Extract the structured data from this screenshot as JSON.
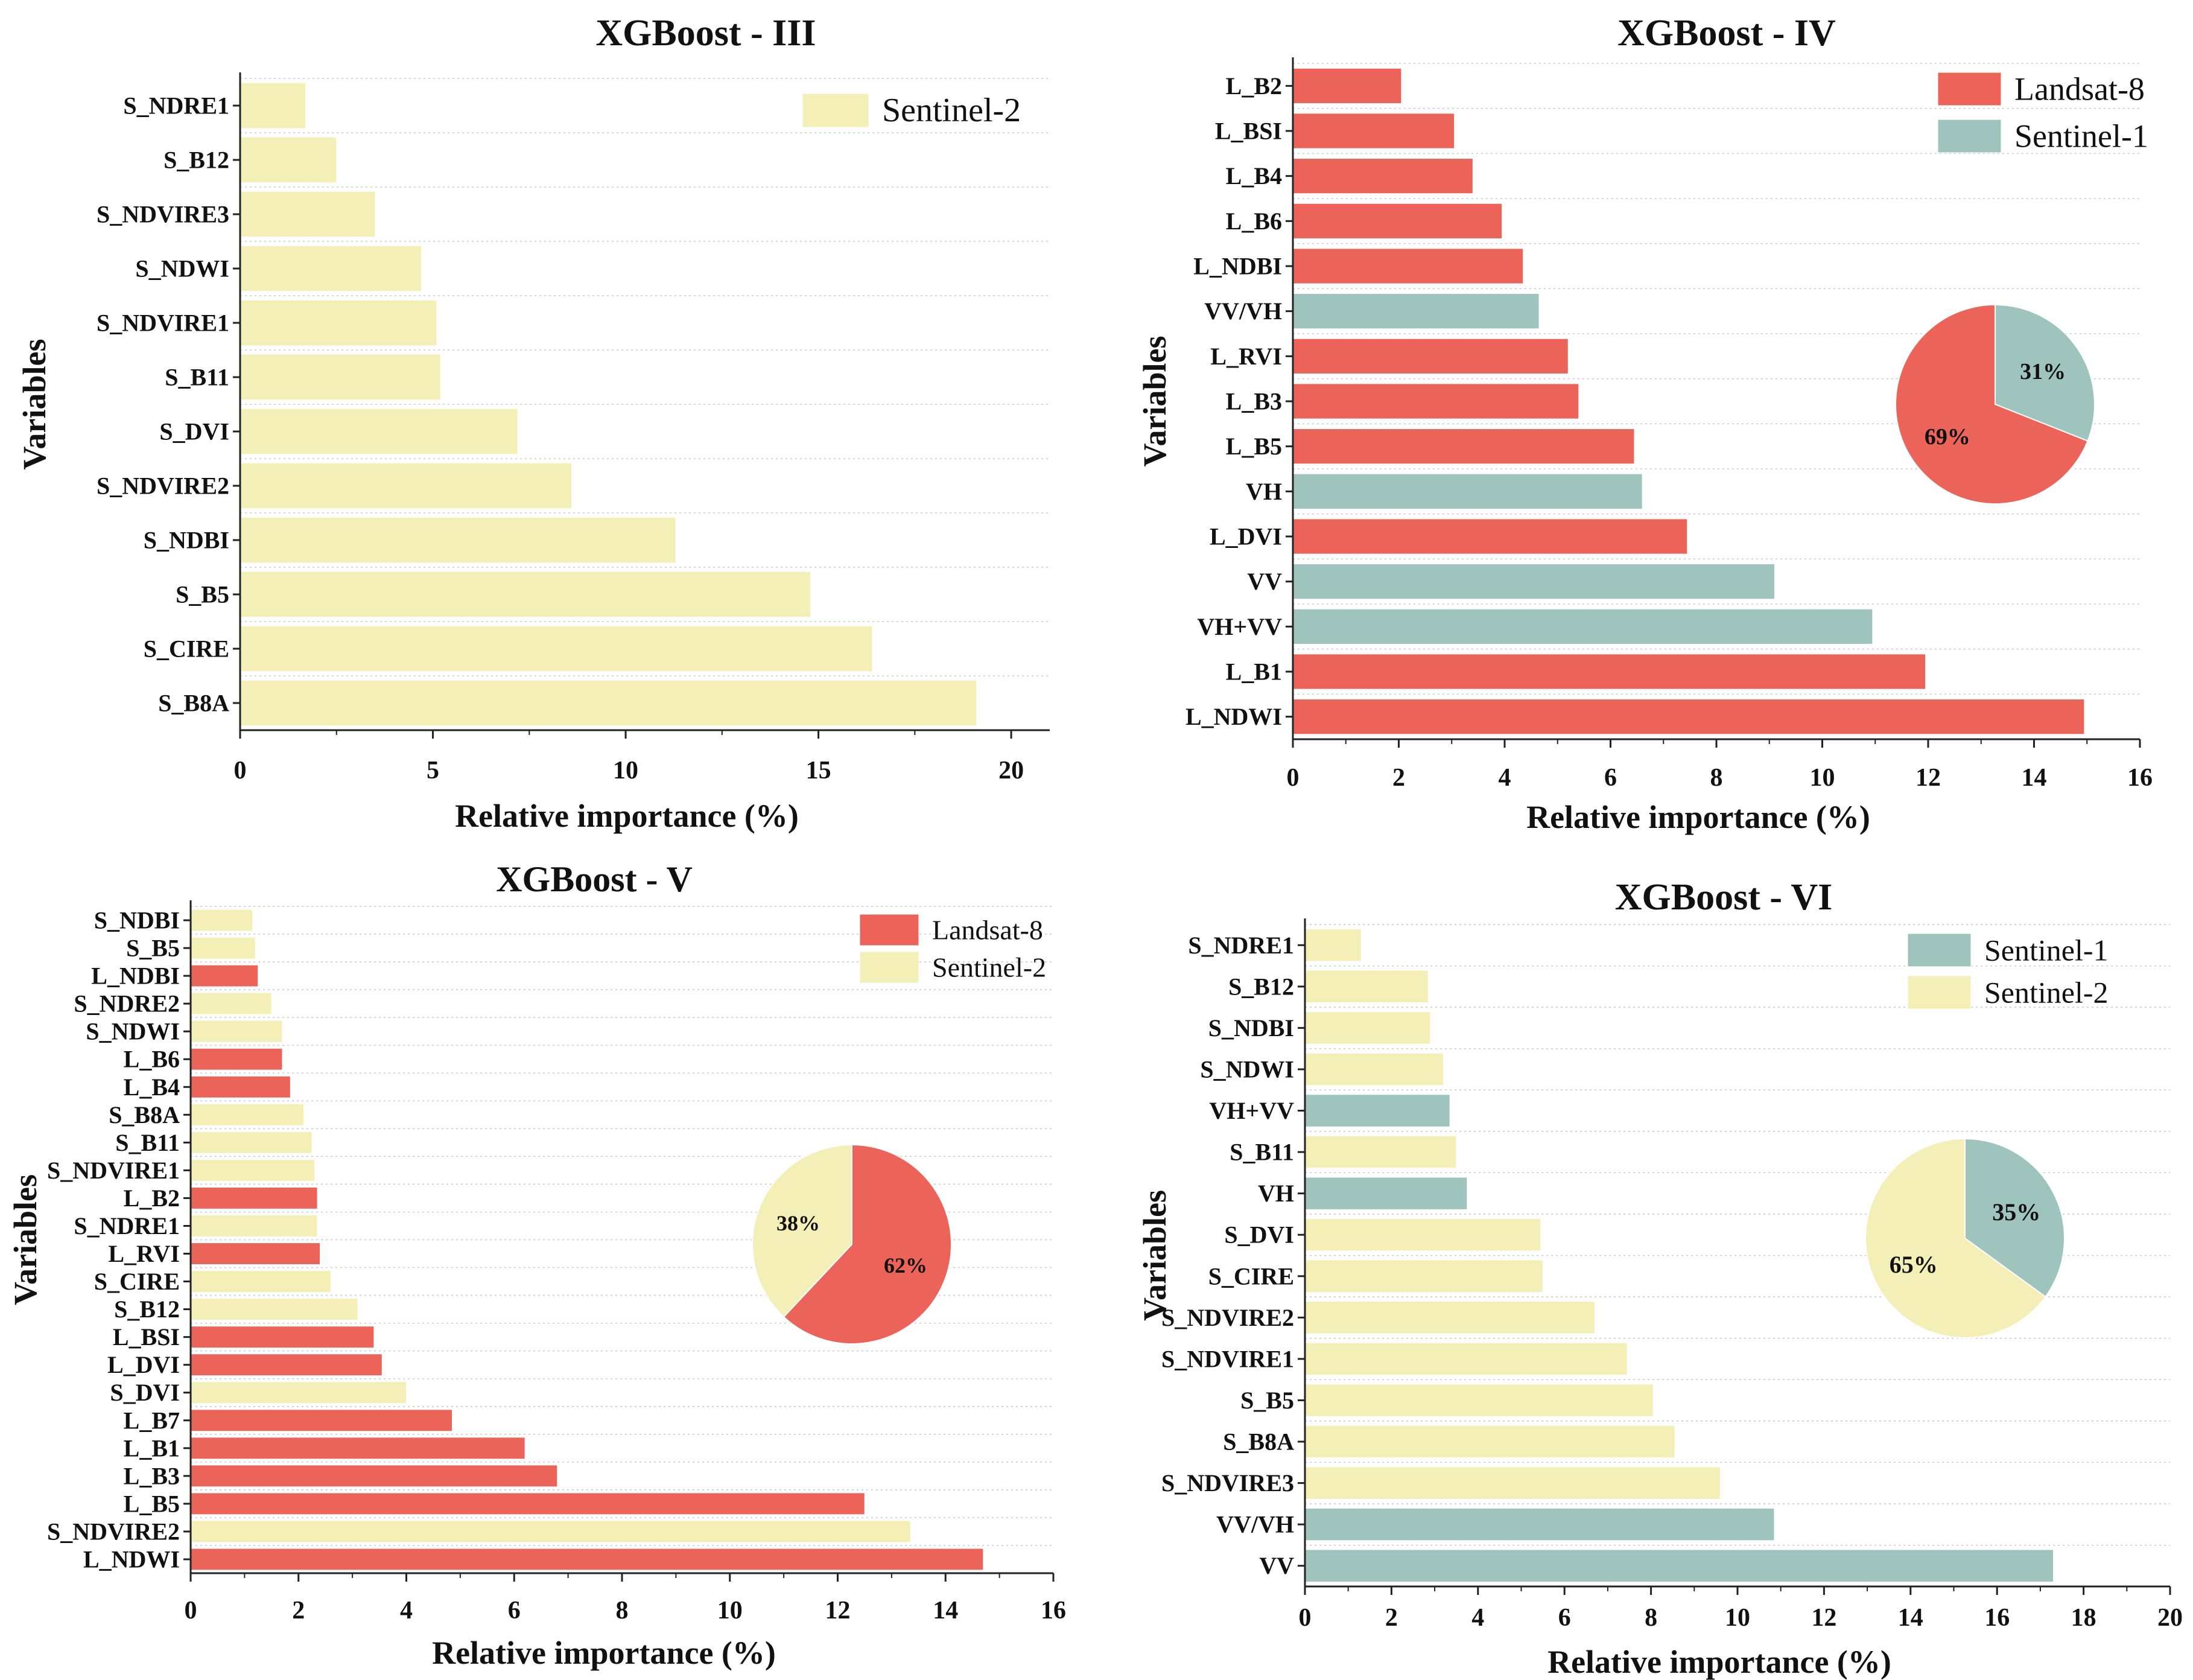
{
  "colors": {
    "Landsat-8": "#ec6459",
    "Sentinel-1": "#9ec4bd",
    "Sentinel-2": "#f3efb7"
  },
  "chart_data": [
    {
      "type": "bar",
      "orientation": "horizontal",
      "title": "XGBoost - III",
      "xlabel": "Relative importance (%)",
      "ylabel": "Variables",
      "xlim": [
        0,
        21
      ],
      "xticks": [
        0,
        5,
        10,
        15,
        20
      ],
      "legend": [
        "Sentinel-2"
      ],
      "categories": [
        "S_NDRE1",
        "S_B12",
        "S_NDVIRE3",
        "S_NDWI",
        "S_NDVIRE1",
        "S_B11",
        "S_DVI",
        "S_NDVIRE2",
        "S_NDBI",
        "S_B5",
        "S_CIRE",
        "S_B8A"
      ],
      "values": [
        1.7,
        2.5,
        3.5,
        4.7,
        5.1,
        5.2,
        7.2,
        8.6,
        11.3,
        14.8,
        16.4,
        19.1
      ],
      "sources": [
        "Sentinel-2",
        "Sentinel-2",
        "Sentinel-2",
        "Sentinel-2",
        "Sentinel-2",
        "Sentinel-2",
        "Sentinel-2",
        "Sentinel-2",
        "Sentinel-2",
        "Sentinel-2",
        "Sentinel-2",
        "Sentinel-2"
      ]
    },
    {
      "type": "bar",
      "orientation": "horizontal",
      "title": "XGBoost - IV",
      "xlabel": "Relative importance (%)",
      "ylabel": "Variables",
      "xlim": [
        0,
        16
      ],
      "xticks": [
        0,
        2,
        4,
        6,
        8,
        10,
        12,
        14,
        16
      ],
      "legend": [
        "Landsat-8",
        "Sentinel-1"
      ],
      "categories": [
        "L_B2",
        "L_BSI",
        "L_B4",
        "L_B6",
        "L_NDBI",
        "VV/VH",
        "L_RVI",
        "L_B3",
        "L_B5",
        "VH",
        "L_DVI",
        "VV",
        "VH+VV",
        "L_B1",
        "L_NDWI"
      ],
      "values": [
        2.05,
        3.05,
        3.4,
        3.95,
        4.35,
        4.65,
        5.2,
        5.4,
        6.45,
        6.6,
        7.45,
        9.1,
        10.95,
        11.95,
        14.95
      ],
      "sources": [
        "Landsat-8",
        "Landsat-8",
        "Landsat-8",
        "Landsat-8",
        "Landsat-8",
        "Sentinel-1",
        "Landsat-8",
        "Landsat-8",
        "Landsat-8",
        "Sentinel-1",
        "Landsat-8",
        "Sentinel-1",
        "Sentinel-1",
        "Landsat-8",
        "Landsat-8"
      ],
      "pie": {
        "slices": [
          {
            "name": "Sentinel-1",
            "value": 31,
            "label": "31%"
          },
          {
            "name": "Landsat-8",
            "value": 69,
            "label": "69%"
          }
        ]
      }
    },
    {
      "type": "bar",
      "orientation": "horizontal",
      "title": "XGBoost - V",
      "xlabel": "Relative importance (%)",
      "ylabel": "Variables",
      "xlim": [
        0,
        16
      ],
      "xticks": [
        0,
        2,
        4,
        6,
        8,
        10,
        12,
        14,
        16
      ],
      "legend": [
        "Landsat-8",
        "Sentinel-2"
      ],
      "categories": [
        "S_NDBI",
        "S_B5",
        "L_NDBI",
        "S_NDRE2",
        "S_NDWI",
        "L_B6",
        "L_B4",
        "S_B8A",
        "S_B11",
        "S_NDVIRE1",
        "L_B2",
        "S_NDRE1",
        "L_RVI",
        "S_CIRE",
        "S_B12",
        "L_BSI",
        "L_DVI",
        "S_DVI",
        "L_B7",
        "L_B1",
        "L_B3",
        "L_B5",
        "S_NDVIRE2",
        "L_NDWI"
      ],
      "values": [
        1.15,
        1.2,
        1.25,
        1.5,
        1.7,
        1.7,
        1.85,
        2.1,
        2.25,
        2.3,
        2.35,
        2.35,
        2.4,
        2.6,
        3.1,
        3.4,
        3.55,
        4.0,
        4.85,
        6.2,
        6.8,
        12.5,
        13.35,
        14.7
      ],
      "sources": [
        "Sentinel-2",
        "Sentinel-2",
        "Landsat-8",
        "Sentinel-2",
        "Sentinel-2",
        "Landsat-8",
        "Landsat-8",
        "Sentinel-2",
        "Sentinel-2",
        "Sentinel-2",
        "Landsat-8",
        "Sentinel-2",
        "Landsat-8",
        "Sentinel-2",
        "Sentinel-2",
        "Landsat-8",
        "Landsat-8",
        "Sentinel-2",
        "Landsat-8",
        "Landsat-8",
        "Landsat-8",
        "Landsat-8",
        "Sentinel-2",
        "Landsat-8"
      ],
      "pie": {
        "slices": [
          {
            "name": "Landsat-8",
            "value": 62,
            "label": "62%"
          },
          {
            "name": "Sentinel-2",
            "value": 38,
            "label": "38%"
          }
        ]
      }
    },
    {
      "type": "bar",
      "orientation": "horizontal",
      "title": "XGBoost - VI",
      "xlabel": "Relative importance (%)",
      "ylabel": "Variables",
      "xlim": [
        0,
        20
      ],
      "xticks": [
        0,
        2,
        4,
        6,
        8,
        10,
        12,
        14,
        16,
        18,
        20
      ],
      "legend": [
        "Sentinel-1",
        "Sentinel-2"
      ],
      "categories": [
        "S_NDRE1",
        "S_B12",
        "S_NDBI",
        "S_NDWI",
        "VH+VV",
        "S_B11",
        "VH",
        "S_DVI",
        "S_CIRE",
        "S_NDVIRE2",
        "S_NDVIRE1",
        "S_B5",
        "S_B8A",
        "S_NDVIRE3",
        "VV/VH",
        "VV"
      ],
      "values": [
        1.3,
        2.85,
        2.9,
        3.2,
        3.35,
        3.5,
        3.75,
        5.45,
        5.5,
        6.7,
        7.45,
        8.05,
        8.55,
        9.6,
        10.85,
        17.3
      ],
      "sources": [
        "Sentinel-2",
        "Sentinel-2",
        "Sentinel-2",
        "Sentinel-2",
        "Sentinel-1",
        "Sentinel-2",
        "Sentinel-1",
        "Sentinel-2",
        "Sentinel-2",
        "Sentinel-2",
        "Sentinel-2",
        "Sentinel-2",
        "Sentinel-2",
        "Sentinel-2",
        "Sentinel-1",
        "Sentinel-1"
      ],
      "pie": {
        "slices": [
          {
            "name": "Sentinel-1",
            "value": 35,
            "label": "35%"
          },
          {
            "name": "Sentinel-2",
            "value": 65,
            "label": "65%"
          }
        ]
      }
    }
  ]
}
